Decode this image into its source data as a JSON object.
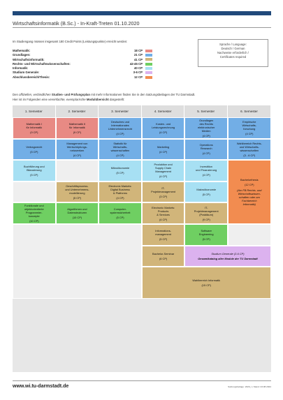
{
  "header": {
    "title": "Wirtschaftsinformatik (B.Sc.) - In-Kraft-Treten 01.10.2020"
  },
  "intro": "Im Studiengang müssen insgesamt 180 Credit Points (Leistungspunkte) erreicht werden:",
  "credits": [
    {
      "label": "Mathematik:",
      "value": "18 CP",
      "color": "#e88a84"
    },
    {
      "label": "Grundlagen:",
      "value": "21 CP",
      "color": "#72aee6"
    },
    {
      "label": "Wirtschaftsinformatik:",
      "value": "41 CP",
      "color": "#d1b57a"
    },
    {
      "label": "Rechts- und Wirtschaftswissenschaften:",
      "value": "42-45 CP",
      "color": "#6fcf62"
    },
    {
      "label": "Informatik:",
      "value": "40 CP",
      "color": "#a7e0f3"
    },
    {
      "label": "Studium Generale:",
      "value": "3-6 CP",
      "color": "#dcb2ef"
    },
    {
      "label": "Abschlussbereich/Thesis:",
      "value": "12 CP",
      "color": "#f28c50"
    }
  ],
  "language_box": [
    "Sprache / Language:",
    "Deutsch / German",
    "Nachweise erforderlich /",
    "Certificates required"
  ],
  "note": {
    "line1_a": "Den ",
    "line1_b": "offiziellen, verbindlichen",
    "line1_c": " Studien- und Prüfungsplan",
    "line1_d": " mit mehr Informationen finden Sie in den Satzungsbeilagen der TU Darmstadt.",
    "line2_a": "Hier ist im Folgenden eine ",
    "line2_b": "vereinfachte, exemplarische",
    "line2_c": " Modulübersicht",
    "line2_d": " dargestellt:"
  },
  "semesters": [
    "1. Semester",
    "2. Semester",
    "3. Semester",
    "4. Semester",
    "5. Semester",
    "6. Semester"
  ],
  "modules": [
    {
      "id": "mathe-1",
      "name": "Mathematik I\nfür Informatik",
      "cp": "(9 CP)",
      "color": "c-math"
    },
    {
      "id": "mathe-2",
      "name": "Mathematik II\nfür Informatik",
      "cp": "(9 CP)",
      "color": "c-math"
    },
    {
      "id": "deutsche-intl",
      "name": "Deutsches und\nInternationales\nUnternehmensrecht",
      "cp": "(4 CP)",
      "color": "c-grund"
    },
    {
      "id": "kosten",
      "name": "Kosten- und\nLeistungsrechnung",
      "cp": "(4 CP)",
      "color": "c-grund"
    },
    {
      "id": "grundlagen-recht",
      "name": "Grundlagen\ndes Rechts\nelektronischer\nMedien",
      "cp": "(4 CP)",
      "color": "c-grund"
    },
    {
      "id": "empirische",
      "name": "Empirische\nWirtschafts-\nforschung",
      "cp": "(4 CP)",
      "color": "c-grund"
    },
    {
      "id": "vertragsrecht",
      "name": "Vertragsrecht",
      "cp": "(5 CP)",
      "color": "c-grund"
    },
    {
      "id": "management-wsn",
      "name": "Management von\nWertschöpfungs-\nnetzwerken",
      "cp": "(4 CP)",
      "color": "c-grund"
    },
    {
      "id": "statistik",
      "name": "Statistik für\nWirtschafts-\nwissenschaften",
      "cp": "(4 CP)",
      "color": "c-grund"
    },
    {
      "id": "marketing",
      "name": "Marketing",
      "cp": "(4 CP)",
      "color": "c-grund"
    },
    {
      "id": "operations",
      "name": "Operations\nResearch",
      "cp": "(4 CP)",
      "color": "c-grund"
    },
    {
      "id": "wahlbereich-recht",
      "name": "Wahlbereich Rechts-\nund Wirtschafts-\nwissenschaften",
      "cp": "(3 - 6 CP)",
      "color": "c-grund"
    },
    {
      "id": "buchfuehrung",
      "name": "Buchführung und\nBilanzierung",
      "cp": "(5 CP)",
      "color": "c-info"
    },
    {
      "id": "mikrooekonomie",
      "name": "Mikroökonomie",
      "cp": "(5 CP)",
      "color": "c-info"
    },
    {
      "id": "production",
      "name": "Produktion und\nSupply Chain\nManagement",
      "cp": "(4 CP)",
      "color": "c-info"
    },
    {
      "id": "investition",
      "name": "Investition\nund Finanzierung",
      "cp": "(4 CP)",
      "color": "c-info"
    },
    {
      "id": "bachelorthesis",
      "name": "Bachelorthesis",
      "cp": "(12 CP)",
      "extra": "(Am FB Rechts- und\nWirtschaftswissen-\nschaften oder am\nFachbereich\nInformatik)",
      "color": "c-thesis"
    },
    {
      "id": "geschaeftsprozess",
      "name": "Geschäftsprozess-\nund Unternehmens-\nmodellierung",
      "cp": "(5 CP)",
      "color": "c-wi"
    },
    {
      "id": "electronic-markets-1",
      "name": "Electronic Markets:\nDigital Business\n& Platforms",
      "cp": "(4 CP)",
      "color": "c-wi"
    },
    {
      "id": "it-projekt",
      "name": "IT-\nProjektmanagement",
      "cp": "(3 CP)",
      "color": "c-wi"
    },
    {
      "id": "makrooekonomie",
      "name": "Makroökonomie",
      "cp": "(5 CP)",
      "color": "c-info"
    },
    {
      "id": "funktionale",
      "name": "Funktionale und\nobjektorientierte\nProgrammier-\nkonzepte",
      "cp": "(10 CP)",
      "color": "c-recht"
    },
    {
      "id": "algorithmen",
      "name": "Algorithmen und\nDatenstrukturen",
      "cp": "(10 CP)",
      "color": "c-recht"
    },
    {
      "id": "computersystem",
      "name": "Computer-\nsystemsicherheit",
      "cp": "(5 CP)",
      "color": "c-recht"
    },
    {
      "id": "electronic-markets-2",
      "name": "Electronic Markets:\nProducts\n& Services",
      "cp": "(4 CP)",
      "color": "c-wi"
    },
    {
      "id": "it-praktikum",
      "name": "IT-\nProjektmanagement\n(Praktikum)",
      "cp": "(9 CP)",
      "color": "c-wi"
    },
    {
      "id": "informationsmanagement",
      "name": "Informations-\nmanagement",
      "cp": "(5 CP)",
      "color": "c-wi"
    },
    {
      "id": "software-eng",
      "name": "Software\nEngineering",
      "cp": "(5 CP)",
      "color": "c-recht"
    },
    {
      "id": "bachelor-seminar",
      "name": "Bachelor-Seminar",
      "cp": "(6 CP)",
      "color": "c-wi"
    },
    {
      "id": "studium-generale",
      "name": "Studium Generale (3-6 CP)",
      "cp": "Gesamtkatalog aller Module der TU Darmstadt",
      "color": "c-sg"
    },
    {
      "id": "wahlbereich-wi",
      "name": "Wahlbereich Informatik",
      "cp": "(15 CP)",
      "color": "c-wi"
    }
  ],
  "footer": {
    "url": "www.wi.tu-darmstadt.de",
    "meta": "Satzungsbeilage: 2020_I  |  Stand: 23.08.2024"
  }
}
